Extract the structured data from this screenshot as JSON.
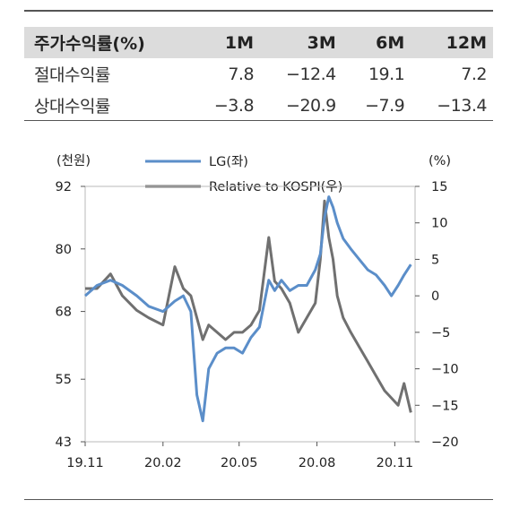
{
  "table": {
    "headers": [
      "주가수익률(%)",
      "1M",
      "3M",
      "6M",
      "12M"
    ],
    "rows": [
      {
        "label": "절대수익률",
        "values": [
          "7.8",
          "−12.4",
          "19.1",
          "7.2"
        ]
      },
      {
        "label": "상대수익률",
        "values": [
          "−3.8",
          "−20.9",
          "−7.9",
          "−13.4"
        ]
      }
    ]
  },
  "chart_data": {
    "type": "line",
    "left_unit": "(천원)",
    "right_unit": "(%)",
    "x_tick_labels": [
      "19.11",
      "20.02",
      "20.05",
      "20.08",
      "20.11"
    ],
    "y_left_ticks": [
      43,
      55,
      68,
      80,
      92
    ],
    "y_left_range": [
      43,
      92
    ],
    "y_right_ticks": [
      -20,
      -15,
      -10,
      -5,
      0,
      5,
      10,
      15
    ],
    "y_right_range": [
      -20,
      15
    ],
    "grid": false,
    "legend_position": "top",
    "series": [
      {
        "name": "LG(좌)",
        "axis": "left",
        "color": "#5b8ec9",
        "x": [
          "2019-11-01",
          "2019-11-15",
          "2019-12-01",
          "2019-12-15",
          "2020-01-01",
          "2020-01-15",
          "2020-02-01",
          "2020-02-15",
          "2020-02-25",
          "2020-03-05",
          "2020-03-12",
          "2020-03-19",
          "2020-03-26",
          "2020-04-05",
          "2020-04-15",
          "2020-04-25",
          "2020-05-05",
          "2020-05-15",
          "2020-05-25",
          "2020-06-05",
          "2020-06-12",
          "2020-06-20",
          "2020-06-30",
          "2020-07-10",
          "2020-07-20",
          "2020-07-30",
          "2020-08-05",
          "2020-08-10",
          "2020-08-15",
          "2020-08-20",
          "2020-08-25",
          "2020-09-01",
          "2020-09-10",
          "2020-09-20",
          "2020-09-30",
          "2020-10-10",
          "2020-10-20",
          "2020-10-28",
          "2020-11-05",
          "2020-11-12",
          "2020-11-20"
        ],
        "values": [
          71,
          73,
          74,
          73,
          71,
          69,
          68,
          70,
          71,
          68,
          52,
          47,
          57,
          60,
          61,
          61,
          60,
          63,
          65,
          74,
          72,
          74,
          72,
          73,
          73,
          76,
          79,
          86,
          90,
          88,
          85,
          82,
          80,
          78,
          76,
          75,
          73,
          71,
          73,
          75,
          77
        ]
      },
      {
        "name": "Relative to KOSPI(우)",
        "axis": "right",
        "color": "#707070",
        "x": [
          "2019-11-01",
          "2019-11-15",
          "2019-12-01",
          "2019-12-15",
          "2020-01-01",
          "2020-01-15",
          "2020-02-01",
          "2020-02-15",
          "2020-02-25",
          "2020-03-05",
          "2020-03-12",
          "2020-03-19",
          "2020-03-26",
          "2020-04-05",
          "2020-04-15",
          "2020-04-25",
          "2020-05-05",
          "2020-05-15",
          "2020-05-25",
          "2020-06-05",
          "2020-06-12",
          "2020-06-20",
          "2020-06-30",
          "2020-07-10",
          "2020-07-20",
          "2020-07-30",
          "2020-08-05",
          "2020-08-10",
          "2020-08-15",
          "2020-08-20",
          "2020-08-25",
          "2020-09-01",
          "2020-09-10",
          "2020-09-20",
          "2020-09-30",
          "2020-10-10",
          "2020-10-20",
          "2020-10-28",
          "2020-11-05",
          "2020-11-12",
          "2020-11-20"
        ],
        "values": [
          1,
          1,
          3,
          0,
          -2,
          -3,
          -4,
          4,
          1,
          0,
          -3,
          -6,
          -4,
          -5,
          -6,
          -5,
          -5,
          -4,
          -2,
          8,
          2,
          1,
          -1,
          -5,
          -3,
          -1,
          5,
          13,
          8,
          5,
          0,
          -3,
          -5,
          -7,
          -9,
          -11,
          -13,
          -14,
          -15,
          -12,
          -16
        ]
      }
    ]
  }
}
